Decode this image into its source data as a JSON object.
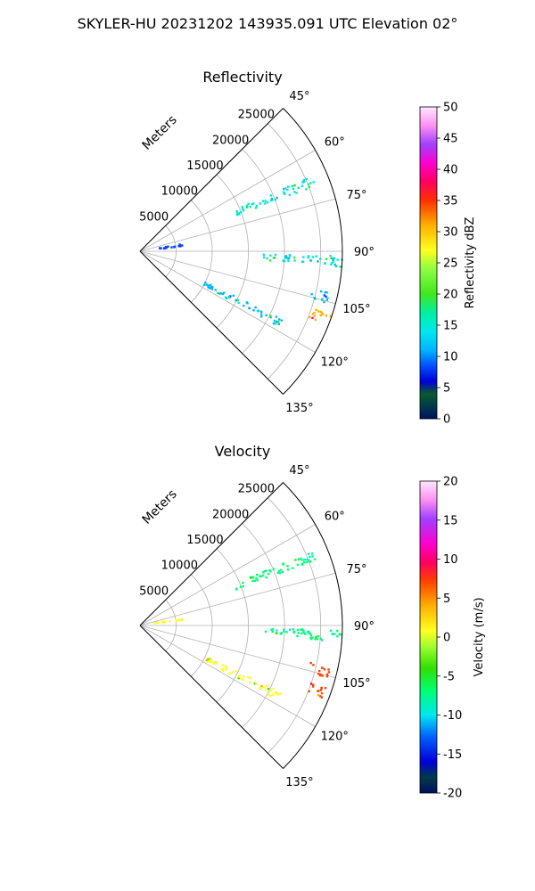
{
  "suptitle": "SKYLER-HU  20231202  143935.091 UTC Elevation 02°",
  "chart_data": [
    {
      "type": "polar-sector-ppi",
      "title": "Reflectivity",
      "range_axis_label": "Meters",
      "range_ticks": [
        5000,
        10000,
        15000,
        20000,
        25000
      ],
      "range_max": 28000,
      "azimuth_ticks": [
        "45°",
        "60°",
        "75°",
        "90°",
        "105°",
        "120°",
        "135°"
      ],
      "azimuth_range_deg": [
        45,
        135
      ],
      "grid": true,
      "colorbar": {
        "label": "Reflectivity dBZ",
        "range": [
          0,
          50
        ],
        "ticks": [
          "0",
          "5",
          "10",
          "15",
          "20",
          "25",
          "30",
          "35",
          "40",
          "45",
          "50"
        ]
      },
      "echo_features": [
        {
          "azimuth_deg": 93,
          "range_start_m": 17000,
          "range_end_m": 28000,
          "value": 20
        },
        {
          "azimuth_deg": 68,
          "range_start_m": 14000,
          "range_end_m": 26000,
          "value": 22
        },
        {
          "azimuth_deg": 117,
          "range_start_m": 10000,
          "range_end_m": 22000,
          "value": 18
        },
        {
          "azimuth_deg": 110,
          "range_start_m": 25000,
          "range_end_m": 28000,
          "value": 36
        },
        {
          "azimuth_deg": 104,
          "range_start_m": 24000,
          "range_end_m": 27000,
          "value": 18
        },
        {
          "azimuth_deg": 82,
          "range_start_m": 2000,
          "range_end_m": 6000,
          "value": 10
        }
      ]
    },
    {
      "type": "polar-sector-ppi",
      "title": "Velocity",
      "range_axis_label": "Meters",
      "range_ticks": [
        5000,
        10000,
        15000,
        20000,
        25000
      ],
      "range_max": 28000,
      "azimuth_ticks": [
        "45°",
        "60°",
        "75°",
        "90°",
        "105°",
        "120°",
        "135°"
      ],
      "azimuth_range_deg": [
        45,
        135
      ],
      "grid": true,
      "colorbar": {
        "label": "Velocity (m/s)",
        "range": [
          -20,
          20
        ],
        "ticks": [
          "-20",
          "-15",
          "-10",
          "-5",
          "0",
          "5",
          "10",
          "15",
          "20"
        ]
      },
      "echo_features": [
        {
          "azimuth_deg": 93,
          "range_start_m": 17000,
          "range_end_m": 28000,
          "value": -6
        },
        {
          "azimuth_deg": 68,
          "range_start_m": 14000,
          "range_end_m": 26000,
          "value": -5
        },
        {
          "azimuth_deg": 117,
          "range_start_m": 10000,
          "range_end_m": 22000,
          "value": 2
        },
        {
          "azimuth_deg": 110,
          "range_start_m": 25000,
          "range_end_m": 28000,
          "value": 9
        },
        {
          "azimuth_deg": 104,
          "range_start_m": 24000,
          "range_end_m": 27000,
          "value": 9
        },
        {
          "azimuth_deg": 82,
          "range_start_m": 2000,
          "range_end_m": 6000,
          "value": 1
        }
      ]
    }
  ]
}
